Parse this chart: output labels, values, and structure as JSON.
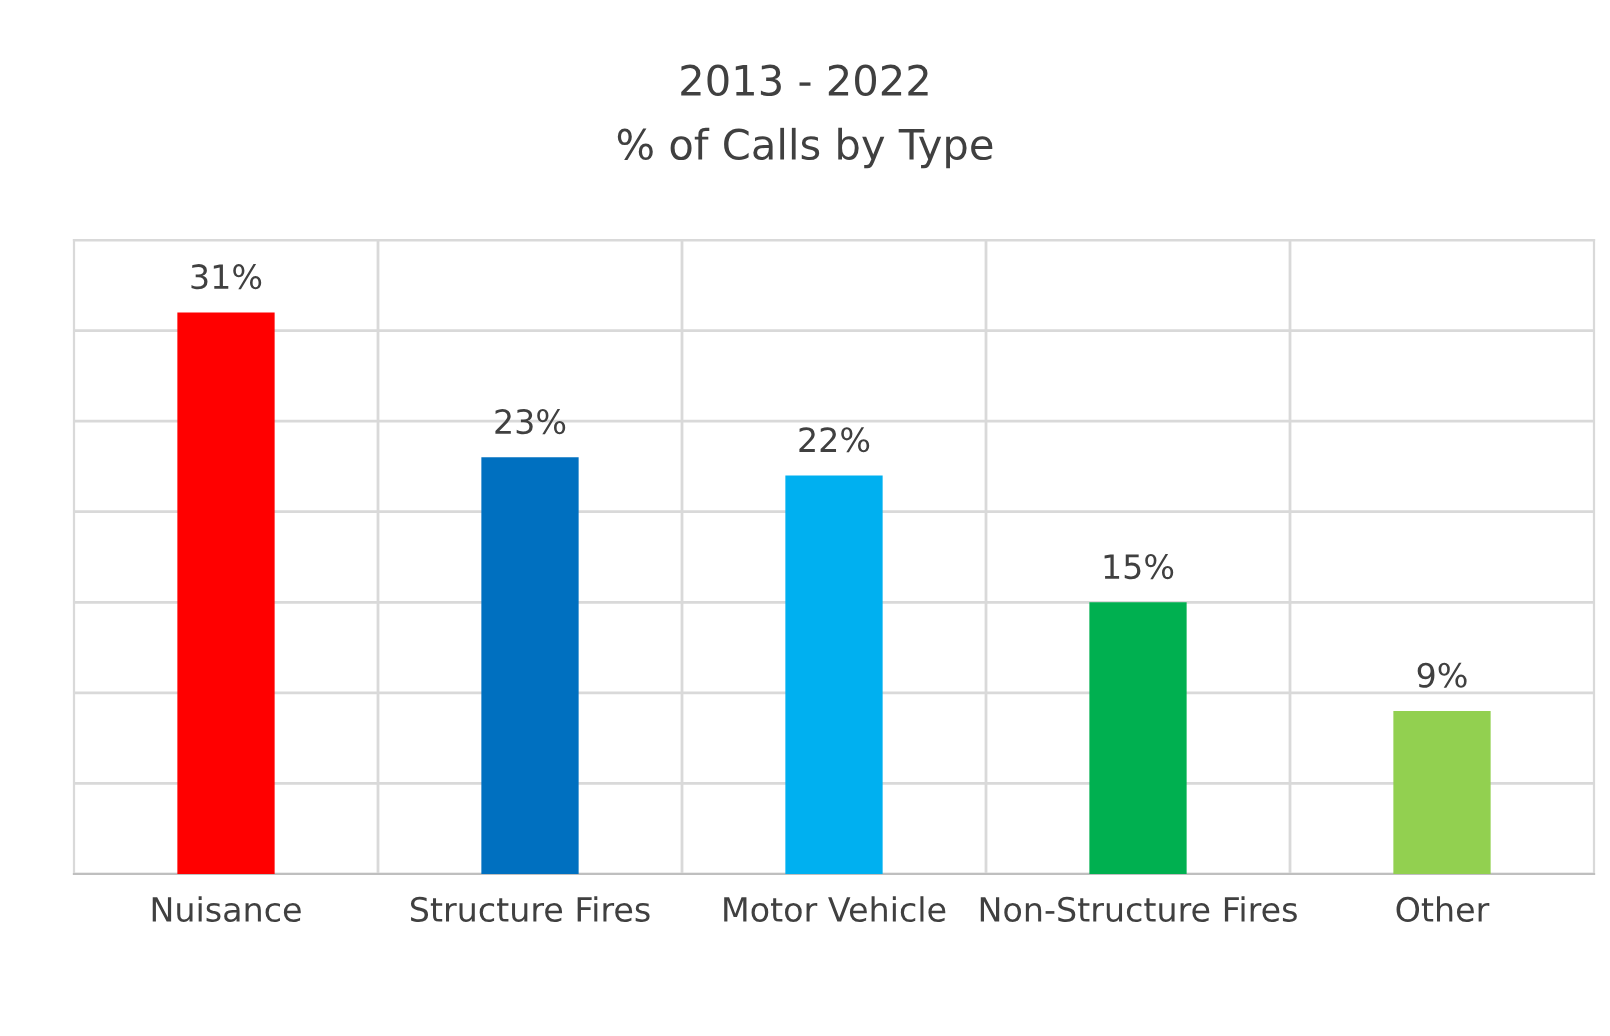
{
  "chart_data": {
    "type": "bar",
    "title": "2013 - 2022",
    "subtitle": "% of Calls by Type",
    "categories": [
      "Nuisance",
      "Structure Fires",
      "Motor Vehicle",
      "Non-Structure Fires",
      "Other"
    ],
    "values": [
      31,
      23,
      22,
      15,
      9
    ],
    "colors": [
      "#ff0000",
      "#0070c0",
      "#00b0f0",
      "#00b050",
      "#92d050"
    ],
    "value_labels": [
      "31%",
      "23%",
      "22%",
      "15%",
      "9%"
    ],
    "ylim": [
      0,
      35
    ],
    "yticks": [
      {
        "value": 0,
        "label": null
      },
      {
        "value": 5,
        "label": null
      },
      {
        "value": 10,
        "label": null
      },
      {
        "value": 15,
        "label": null
      },
      {
        "value": 20,
        "label": null
      },
      {
        "value": 25,
        "label": null
      },
      {
        "value": 30,
        "label": null
      },
      {
        "value": 35,
        "label": null
      }
    ],
    "tick_labels": "x",
    "grid": true,
    "legend": false
  }
}
